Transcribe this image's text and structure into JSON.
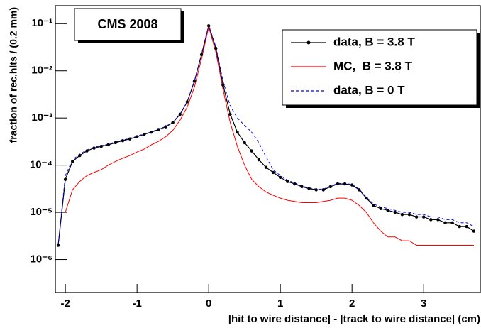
{
  "chart_data": {
    "type": "line",
    "title": "CMS 2008",
    "x_label": "|hit to wire distance| - |track to wire distance| (cm)",
    "y_label": "fraction of rec.hits / (0.2 mm)",
    "log_y": true,
    "legend_position": "upper right",
    "xlim": [
      -2.14,
      3.79
    ],
    "ylim": [
      2e-07,
      0.24
    ],
    "xticks": [
      -2,
      -1,
      0,
      1,
      2,
      3
    ],
    "yticks": [
      {
        "value": 1e-06,
        "label": "10⁻⁶"
      },
      {
        "value": 1e-05,
        "label": "10⁻⁵"
      },
      {
        "value": 0.0001,
        "label": "10⁻⁴"
      },
      {
        "value": 0.001,
        "label": "10⁻³"
      },
      {
        "value": 0.01,
        "label": "10⁻²"
      },
      {
        "value": 0.1,
        "label": "10⁻¹"
      }
    ],
    "x": [
      -2.1,
      -2.0,
      -1.9,
      -1.8,
      -1.7,
      -1.6,
      -1.5,
      -1.4,
      -1.3,
      -1.2,
      -1.1,
      -1.0,
      -0.9,
      -0.8,
      -0.7,
      -0.6,
      -0.5,
      -0.4,
      -0.3,
      -0.2,
      -0.1,
      0.0,
      0.1,
      0.2,
      0.3,
      0.4,
      0.5,
      0.6,
      0.7,
      0.8,
      0.9,
      1.0,
      1.1,
      1.2,
      1.3,
      1.4,
      1.5,
      1.6,
      1.7,
      1.8,
      1.9,
      2.0,
      2.1,
      2.2,
      2.3,
      2.4,
      2.5,
      2.6,
      2.7,
      2.8,
      2.9,
      3.0,
      3.1,
      3.2,
      3.3,
      3.4,
      3.5,
      3.6,
      3.7
    ],
    "series": [
      {
        "name": "data, B = 3.8 T",
        "color": "#000000",
        "style": "markers",
        "values": [
          2e-06,
          5e-05,
          0.00012,
          0.00016,
          0.0002,
          0.00023,
          0.00025,
          0.00027,
          0.0003,
          0.00033,
          0.00036,
          0.0004,
          0.00045,
          0.0005,
          0.00057,
          0.00065,
          0.0008,
          0.0012,
          0.0022,
          0.006,
          0.022,
          0.09,
          0.03,
          0.005,
          0.0012,
          0.0005,
          0.0003,
          0.0002,
          0.00013,
          9e-05,
          7e-05,
          5.5e-05,
          4.5e-05,
          4e-05,
          3.5e-05,
          3.2e-05,
          3e-05,
          3e-05,
          3.5e-05,
          4e-05,
          4e-05,
          3.8e-05,
          3e-05,
          2e-05,
          1.4e-05,
          1.2e-05,
          1.1e-05,
          1e-05,
          9e-06,
          9e-06,
          8e-06,
          8e-06,
          7e-06,
          7e-06,
          6e-06,
          6e-06,
          5e-06,
          5e-06,
          4e-06
        ]
      },
      {
        "name": "MC,  B = 3.8 T",
        "color": "#ff0000",
        "style": "solid",
        "values": [
          null,
          1e-05,
          3e-05,
          4.5e-05,
          6e-05,
          7e-05,
          8e-05,
          0.0001,
          0.00012,
          0.00014,
          0.00016,
          0.00019,
          0.00022,
          0.00027,
          0.00032,
          0.0004,
          0.00055,
          0.0009,
          0.0017,
          0.0045,
          0.018,
          0.085,
          0.025,
          0.004,
          0.0008,
          0.00025,
          0.0001,
          5e-05,
          3.5e-05,
          2.7e-05,
          2.3e-05,
          2e-05,
          1.8e-05,
          1.7e-05,
          1.6e-05,
          1.6e-05,
          1.6e-05,
          1.7e-05,
          1.8e-05,
          2e-05,
          2e-05,
          1.8e-05,
          1.4e-05,
          1e-05,
          6e-06,
          4e-06,
          3e-06,
          3e-06,
          2.5e-06,
          2.5e-06,
          2e-06,
          2e-06,
          2e-06,
          2e-06,
          2e-06,
          2e-06,
          2e-06,
          2e-06,
          2e-06
        ]
      },
      {
        "name": "data, B = 0 T",
        "color": "#0000ff",
        "style": "dashed",
        "values": [
          2e-06,
          6e-05,
          0.00013,
          0.00017,
          0.00021,
          0.00024,
          0.00026,
          0.00028,
          0.00031,
          0.00034,
          0.00037,
          0.00041,
          0.00046,
          0.00051,
          0.00058,
          0.00066,
          0.00082,
          0.0012,
          0.0022,
          0.006,
          0.023,
          0.092,
          0.032,
          0.006,
          0.0018,
          0.001,
          0.0007,
          0.0005,
          0.0003,
          0.00015,
          8e-05,
          6e-05,
          4.8e-05,
          4.2e-05,
          3.6e-05,
          3.3e-05,
          3.1e-05,
          3.1e-05,
          3.6e-05,
          4.1e-05,
          4.1e-05,
          3.9e-05,
          3.1e-05,
          2.1e-05,
          1.5e-05,
          1.3e-05,
          1.2e-05,
          1.1e-05,
          1e-05,
          1e-05,
          9e-06,
          9e-06,
          8e-06,
          8e-06,
          7e-06,
          7e-06,
          6e-06,
          6e-06,
          5e-06
        ]
      }
    ]
  }
}
